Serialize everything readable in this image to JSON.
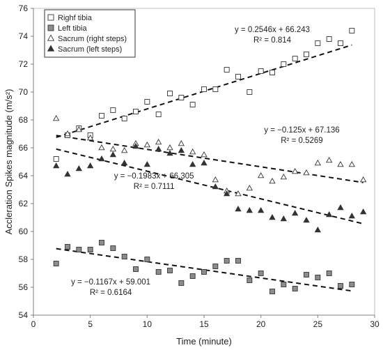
{
  "chart_data": {
    "type": "scatter",
    "xlabel": "Time (minute)",
    "ylabel": "Accleration Spikes magnitude (m/s²)",
    "xlim": [
      0,
      30
    ],
    "ylim": [
      54,
      76
    ],
    "xticks": [
      0,
      5,
      10,
      15,
      20,
      25,
      30
    ],
    "yticks": [
      54,
      56,
      58,
      60,
      62,
      64,
      66,
      68,
      70,
      72,
      74,
      76
    ],
    "grid": false,
    "legend_position": "top-left",
    "series": [
      {
        "name": "Righf tibia",
        "marker": "open-square",
        "x": [
          2,
          3,
          4,
          5,
          6,
          7,
          8,
          9,
          10,
          11,
          12,
          13,
          14,
          15,
          16,
          17,
          18,
          19,
          20,
          21,
          22,
          23,
          24,
          25,
          26,
          27,
          28
        ],
        "y": [
          65.2,
          66.9,
          67.4,
          66.9,
          68.3,
          68.7,
          68.1,
          68.6,
          69.3,
          68.4,
          69.9,
          69.6,
          69.1,
          70.2,
          70.2,
          71.6,
          71.1,
          70.0,
          71.5,
          71.4,
          72.0,
          72.4,
          72.7,
          73.5,
          73.8,
          73.5,
          74.4
        ],
        "trendline": {
          "slope": 0.2546,
          "intercept": 66.243,
          "equation": "y = 0.2546x + 66.243",
          "r2": "R² = 0.814"
        }
      },
      {
        "name": "Left tibia",
        "marker": "filled-square",
        "x": [
          2,
          3,
          4,
          5,
          6,
          7,
          8,
          9,
          10,
          11,
          12,
          13,
          14,
          15,
          16,
          17,
          18,
          19,
          20,
          21,
          22,
          23,
          24,
          25,
          26,
          27,
          28
        ],
        "y": [
          57.7,
          58.9,
          58.7,
          58.7,
          59.2,
          58.8,
          58.2,
          57.3,
          58.0,
          57.1,
          57.2,
          56.3,
          56.8,
          57.1,
          57.5,
          57.9,
          57.9,
          56.5,
          57.0,
          55.7,
          56.2,
          55.9,
          56.9,
          56.7,
          57.0,
          56.1,
          56.2
        ],
        "trendline": {
          "slope": -0.1167,
          "intercept": 59.001,
          "equation": "y = −0.1167x + 59.001",
          "r2": "R² = 0.6164"
        }
      },
      {
        "name": "Sacrum (right steps)",
        "marker": "open-triangle",
        "x": [
          2,
          3,
          4,
          5,
          6,
          7,
          8,
          9,
          10,
          11,
          12,
          13,
          14,
          15,
          16,
          17,
          18,
          19,
          20,
          21,
          22,
          23,
          24,
          25,
          26,
          27,
          28,
          29
        ],
        "y": [
          68.1,
          67.0,
          67.3,
          66.7,
          66.0,
          65.9,
          65.8,
          66.3,
          66.2,
          66.4,
          66.0,
          66.3,
          65.7,
          65.5,
          63.7,
          62.9,
          62.7,
          63.1,
          64.0,
          63.6,
          63.9,
          64.3,
          64.2,
          64.9,
          65.1,
          64.8,
          64.8,
          63.7
        ],
        "trendline": {
          "slope": -0.125,
          "intercept": 67.136,
          "equation": "y = −0.125x + 67.136",
          "r2": "R² = 0.5269"
        }
      },
      {
        "name": "Sacrum (left steps)",
        "marker": "filled-triangle",
        "x": [
          2,
          3,
          4,
          5,
          6,
          7,
          8,
          9,
          10,
          11,
          12,
          13,
          14,
          15,
          16,
          17,
          18,
          19,
          20,
          21,
          22,
          23,
          24,
          25,
          26,
          27,
          28,
          29
        ],
        "y": [
          64.7,
          64.1,
          64.5,
          64.7,
          65.2,
          65.5,
          64.9,
          66.1,
          64.8,
          65.9,
          65.6,
          65.8,
          64.8,
          64.9,
          63.2,
          62.7,
          61.6,
          61.5,
          61.5,
          61.0,
          60.9,
          61.3,
          60.8,
          60.1,
          61.2,
          61.7,
          61.1,
          61.4
        ],
        "trendline": {
          "slope": -0.1983,
          "intercept": 66.305,
          "equation": "y = −0.1983x + 66.305",
          "r2": "R² = 0.7111"
        }
      }
    ]
  }
}
